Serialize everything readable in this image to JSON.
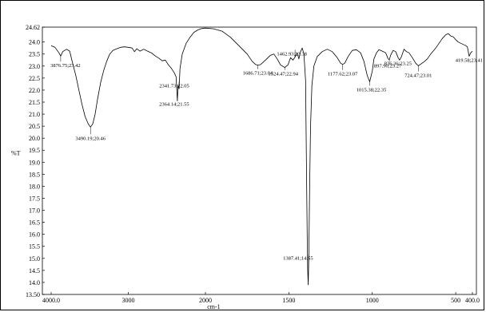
{
  "chart_data": {
    "type": "line",
    "xlabel": "cm-1",
    "ylabel": "%T",
    "xlim": [
      4000,
      400
    ],
    "ylim": [
      13.5,
      24.62
    ],
    "x_ticks": [
      {
        "value": 4000,
        "label": "4000.0"
      },
      {
        "value": 3000,
        "label": "3000"
      },
      {
        "value": 2000,
        "label": "2000"
      },
      {
        "value": 1500,
        "label": "1500"
      },
      {
        "value": 1000,
        "label": "1000"
      },
      {
        "value": 500,
        "label": "500"
      },
      {
        "value": 400,
        "label": "400.0"
      }
    ],
    "y_ticks": [
      {
        "value": 24.62,
        "label": "24.62"
      },
      {
        "value": 24.0,
        "label": "24.0"
      },
      {
        "value": 23.5,
        "label": "23.5"
      },
      {
        "value": 23.0,
        "label": "23.0"
      },
      {
        "value": 22.5,
        "label": "22.5"
      },
      {
        "value": 22.0,
        "label": "22.0"
      },
      {
        "value": 21.5,
        "label": "21.5"
      },
      {
        "value": 21.0,
        "label": "21.0"
      },
      {
        "value": 20.5,
        "label": "20.5"
      },
      {
        "value": 20.0,
        "label": "20.0"
      },
      {
        "value": 19.5,
        "label": "19.5"
      },
      {
        "value": 19.0,
        "label": "19.0"
      },
      {
        "value": 18.5,
        "label": "18.5"
      },
      {
        "value": 18.0,
        "label": "18.0"
      },
      {
        "value": 17.5,
        "label": "17.5"
      },
      {
        "value": 17.0,
        "label": "17.0"
      },
      {
        "value": 16.5,
        "label": "16.5"
      },
      {
        "value": 16.0,
        "label": "16.0"
      },
      {
        "value": 15.5,
        "label": "15.5"
      },
      {
        "value": 15.0,
        "label": "15.0"
      },
      {
        "value": 14.5,
        "label": "14.5"
      },
      {
        "value": 14.0,
        "label": "14.0"
      },
      {
        "value": 13.5,
        "label": "13.50"
      }
    ],
    "spectrum": [
      [
        4000,
        23.85
      ],
      [
        3950,
        23.78
      ],
      [
        3900,
        23.55
      ],
      [
        3876.75,
        23.42
      ],
      [
        3850,
        23.6
      ],
      [
        3800,
        23.7
      ],
      [
        3760,
        23.62
      ],
      [
        3720,
        23.1
      ],
      [
        3680,
        22.6
      ],
      [
        3640,
        22.0
      ],
      [
        3600,
        21.4
      ],
      [
        3560,
        20.9
      ],
      [
        3520,
        20.6
      ],
      [
        3490.19,
        20.46
      ],
      [
        3460,
        20.6
      ],
      [
        3430,
        21.0
      ],
      [
        3400,
        21.6
      ],
      [
        3360,
        22.3
      ],
      [
        3320,
        22.8
      ],
      [
        3280,
        23.2
      ],
      [
        3240,
        23.5
      ],
      [
        3200,
        23.65
      ],
      [
        3150,
        23.72
      ],
      [
        3100,
        23.78
      ],
      [
        3050,
        23.8
      ],
      [
        3000,
        23.78
      ],
      [
        2950,
        23.75
      ],
      [
        2920,
        23.6
      ],
      [
        2890,
        23.72
      ],
      [
        2850,
        23.62
      ],
      [
        2800,
        23.7
      ],
      [
        2750,
        23.62
      ],
      [
        2700,
        23.55
      ],
      [
        2650,
        23.42
      ],
      [
        2600,
        23.32
      ],
      [
        2560,
        23.22
      ],
      [
        2520,
        23.25
      ],
      [
        2480,
        23.05
      ],
      [
        2440,
        22.9
      ],
      [
        2400,
        22.7
      ],
      [
        2380,
        22.55
      ],
      [
        2364.14,
        21.55
      ],
      [
        2355,
        22.2
      ],
      [
        2341.73,
        22.05
      ],
      [
        2330,
        22.9
      ],
      [
        2300,
        23.5
      ],
      [
        2250,
        23.95
      ],
      [
        2200,
        24.2
      ],
      [
        2150,
        24.4
      ],
      [
        2100,
        24.5
      ],
      [
        2050,
        24.56
      ],
      [
        2000,
        24.58
      ],
      [
        1950,
        24.55
      ],
      [
        1900,
        24.45
      ],
      [
        1850,
        24.2
      ],
      [
        1800,
        23.85
      ],
      [
        1750,
        23.5
      ],
      [
        1720,
        23.2
      ],
      [
        1700,
        23.07
      ],
      [
        1686.71,
        23.04
      ],
      [
        1670,
        23.06
      ],
      [
        1640,
        23.25
      ],
      [
        1610,
        23.45
      ],
      [
        1590,
        23.5
      ],
      [
        1570,
        23.3
      ],
      [
        1550,
        23.05
      ],
      [
        1524.47,
        22.94
      ],
      [
        1505,
        23.05
      ],
      [
        1490,
        23.35
      ],
      [
        1475,
        23.25
      ],
      [
        1462.93,
        23.38
      ],
      [
        1450,
        23.55
      ],
      [
        1440,
        23.3
      ],
      [
        1430,
        23.6
      ],
      [
        1420,
        23.75
      ],
      [
        1410,
        23.5
      ],
      [
        1400,
        22.4
      ],
      [
        1394,
        18.5
      ],
      [
        1390,
        16.0
      ],
      [
        1387.41,
        14.55
      ],
      [
        1384,
        13.9
      ],
      [
        1380,
        15.2
      ],
      [
        1376,
        17.8
      ],
      [
        1370,
        20.5
      ],
      [
        1362,
        22.2
      ],
      [
        1350,
        23.0
      ],
      [
        1330,
        23.4
      ],
      [
        1300,
        23.6
      ],
      [
        1270,
        23.7
      ],
      [
        1240,
        23.6
      ],
      [
        1210,
        23.35
      ],
      [
        1190,
        23.12
      ],
      [
        1177.62,
        23.07
      ],
      [
        1165,
        23.12
      ],
      [
        1145,
        23.4
      ],
      [
        1120,
        23.65
      ],
      [
        1095,
        23.68
      ],
      [
        1070,
        23.55
      ],
      [
        1050,
        23.2
      ],
      [
        1030,
        22.6
      ],
      [
        1015.38,
        22.35
      ],
      [
        1000,
        22.8
      ],
      [
        990,
        23.3
      ],
      [
        975,
        23.55
      ],
      [
        960,
        23.68
      ],
      [
        940,
        23.62
      ],
      [
        920,
        23.55
      ],
      [
        905,
        23.3
      ],
      [
        897.9,
        23.27
      ],
      [
        890,
        23.45
      ],
      [
        875,
        23.65
      ],
      [
        860,
        23.6
      ],
      [
        845,
        23.35
      ],
      [
        836.36,
        23.25
      ],
      [
        825,
        23.4
      ],
      [
        810,
        23.7
      ],
      [
        795,
        23.6
      ],
      [
        780,
        23.55
      ],
      [
        760,
        23.35
      ],
      [
        740,
        23.12
      ],
      [
        724.47,
        23.01
      ],
      [
        710,
        23.08
      ],
      [
        690,
        23.18
      ],
      [
        670,
        23.3
      ],
      [
        650,
        23.5
      ],
      [
        620,
        23.75
      ],
      [
        600,
        23.95
      ],
      [
        580,
        24.15
      ],
      [
        560,
        24.3
      ],
      [
        545,
        24.35
      ],
      [
        530,
        24.25
      ],
      [
        515,
        24.22
      ],
      [
        500,
        24.1
      ],
      [
        485,
        24.0
      ],
      [
        470,
        23.95
      ],
      [
        455,
        23.9
      ],
      [
        440,
        23.85
      ],
      [
        430,
        23.8
      ],
      [
        419.58,
        23.41
      ],
      [
        410,
        23.55
      ],
      [
        400,
        23.62
      ]
    ],
    "annotations": [
      {
        "x": 3876.75,
        "y": 23.42,
        "label": "3876.75;23.42"
      },
      {
        "x": 3490.19,
        "y": 20.46,
        "label": "3490.19;20.46"
      },
      {
        "x": 2341.73,
        "y": 22.05,
        "label": "2341.73;22.05"
      },
      {
        "x": 2364.14,
        "y": 21.55,
        "label": "2364.14;21.55"
      },
      {
        "x": 1686.71,
        "y": 23.04,
        "label": "1686.71;23.04"
      },
      {
        "x": 1524.47,
        "y": 22.94,
        "label": "1524.47;22.94"
      },
      {
        "x": 1462.93,
        "y": 23.38,
        "label": "1462.93;23.38"
      },
      {
        "x": 1387.41,
        "y": 14.55,
        "label": "1387.41;14.55"
      },
      {
        "x": 1177.62,
        "y": 23.07,
        "label": "1177.62;23.07"
      },
      {
        "x": 1015.38,
        "y": 22.35,
        "label": "1015.38;22.35"
      },
      {
        "x": 897.9,
        "y": 23.27,
        "label": "897.90;23.27"
      },
      {
        "x": 836.36,
        "y": 23.25,
        "label": "836.36;23.25"
      },
      {
        "x": 724.47,
        "y": 23.01,
        "label": "724.47;23.01"
      },
      {
        "x": 419.58,
        "y": 23.41,
        "label": "419.58;23.41"
      }
    ],
    "grid": false,
    "line_color": "#000000"
  }
}
